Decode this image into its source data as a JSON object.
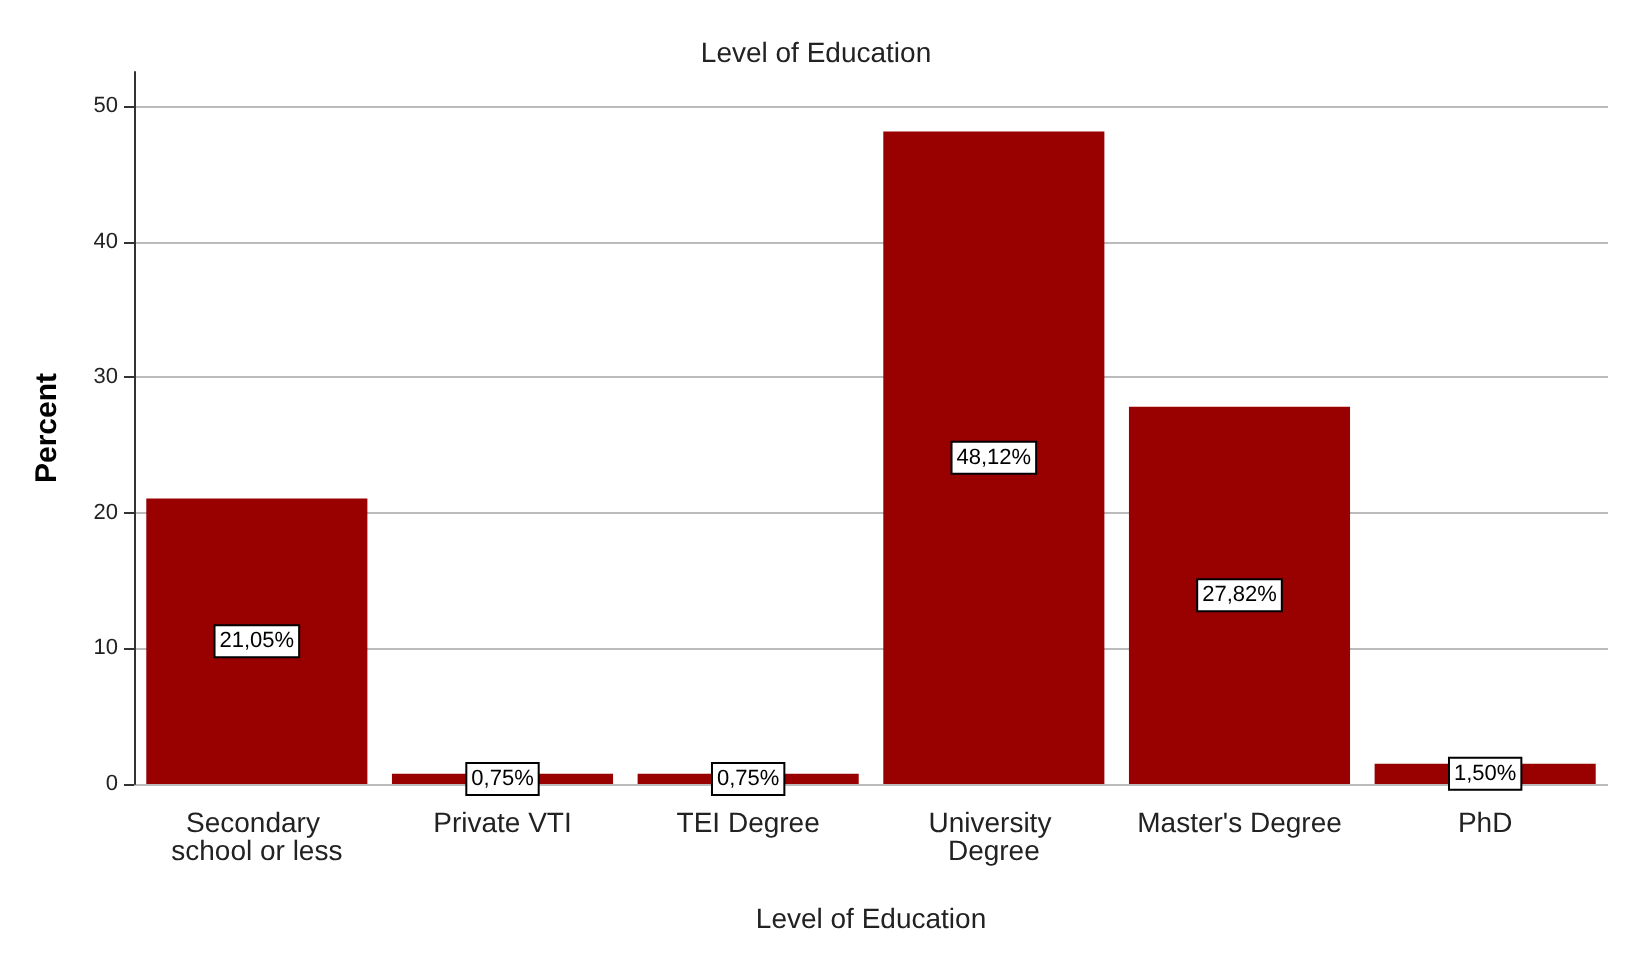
{
  "chart_data": {
    "type": "bar",
    "title": "Level of Education",
    "xlabel": "Level of Education",
    "ylabel": "Percent",
    "categories": [
      "Secondary school or less",
      "Private VTI",
      "TEI Degree",
      "University Degree",
      "Master's Degree",
      "PhD"
    ],
    "values": [
      21.05,
      0.75,
      0.75,
      48.12,
      27.82,
      1.5
    ],
    "value_labels": [
      "21,05%",
      "0,75%",
      "0,75%",
      "48,12%",
      "27,82%",
      "1,50%"
    ],
    "color": "#990000",
    "ylim": [
      0,
      52.5
    ],
    "yticks": [
      0,
      10,
      20,
      30,
      40,
      50
    ],
    "grid": "y"
  }
}
